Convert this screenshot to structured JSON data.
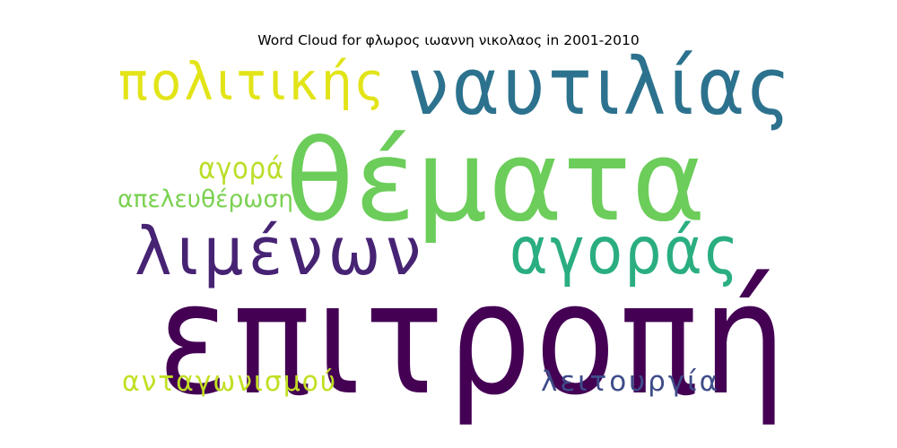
{
  "chart_data": {
    "type": "wordcloud",
    "title": "Word Cloud for φλωρος ιωαννη νικολαος in 2001-2010",
    "words": [
      {
        "text": "επιτροπή",
        "color": "#440154"
      },
      {
        "text": "θέματα",
        "color": "#6ccd5a"
      },
      {
        "text": "ναυτιλίας",
        "color": "#2c728e"
      },
      {
        "text": "λιμένων",
        "color": "#472374"
      },
      {
        "text": "αγοράς",
        "color": "#2aae80"
      },
      {
        "text": "πολιτικής",
        "color": "#e2e418"
      },
      {
        "text": "αγορά",
        "color": "#bade28"
      },
      {
        "text": "απελευθέρωση",
        "color": "#7ad151"
      },
      {
        "text": "ανταγωνισμού",
        "color": "#c2df23"
      },
      {
        "text": "λειτουργία",
        "color": "#3e4c8a"
      }
    ]
  }
}
